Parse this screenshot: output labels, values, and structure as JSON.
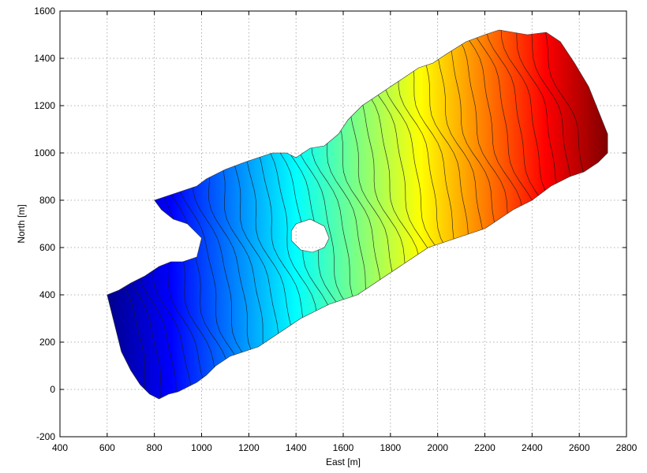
{
  "chart_data": {
    "type": "heatmap",
    "title": "",
    "xlabel": "East [m]",
    "ylabel": "North [m]",
    "xlim": [
      400,
      2800
    ],
    "ylim": [
      -200,
      1600
    ],
    "xticks": [
      400,
      600,
      800,
      1000,
      1200,
      1400,
      1600,
      1800,
      2000,
      2200,
      2400,
      2600,
      2800
    ],
    "yticks": [
      -200,
      0,
      200,
      400,
      600,
      800,
      1000,
      1200,
      1400,
      1600
    ],
    "grid": true,
    "colormap": "jet",
    "colormap_stops": [
      "#00008f",
      "#0000ff",
      "#0080ff",
      "#00ffff",
      "#80ff80",
      "#ffff00",
      "#ff8000",
      "#ff0000",
      "#800000"
    ],
    "region_outline": [
      [
        600,
        400
      ],
      [
        650,
        420
      ],
      [
        700,
        450
      ],
      [
        760,
        480
      ],
      [
        820,
        520
      ],
      [
        870,
        540
      ],
      [
        920,
        540
      ],
      [
        980,
        560
      ],
      [
        1000,
        640
      ],
      [
        940,
        700
      ],
      [
        880,
        720
      ],
      [
        830,
        760
      ],
      [
        800,
        800
      ],
      [
        860,
        820
      ],
      [
        920,
        840
      ],
      [
        980,
        860
      ],
      [
        1020,
        890
      ],
      [
        1100,
        930
      ],
      [
        1180,
        960
      ],
      [
        1240,
        980
      ],
      [
        1300,
        1000
      ],
      [
        1360,
        1000
      ],
      [
        1400,
        980
      ],
      [
        1460,
        1020
      ],
      [
        1520,
        1030
      ],
      [
        1580,
        1080
      ],
      [
        1620,
        1140
      ],
      [
        1680,
        1200
      ],
      [
        1740,
        1240
      ],
      [
        1800,
        1280
      ],
      [
        1860,
        1320
      ],
      [
        1920,
        1360
      ],
      [
        1980,
        1380
      ],
      [
        2040,
        1420
      ],
      [
        2120,
        1470
      ],
      [
        2200,
        1500
      ],
      [
        2260,
        1520
      ],
      [
        2320,
        1510
      ],
      [
        2380,
        1500
      ],
      [
        2460,
        1510
      ],
      [
        2520,
        1470
      ],
      [
        2580,
        1380
      ],
      [
        2640,
        1280
      ],
      [
        2680,
        1180
      ],
      [
        2720,
        1080
      ],
      [
        2720,
        1000
      ],
      [
        2680,
        960
      ],
      [
        2620,
        920
      ],
      [
        2560,
        900
      ],
      [
        2480,
        860
      ],
      [
        2400,
        800
      ],
      [
        2320,
        760
      ],
      [
        2260,
        720
      ],
      [
        2200,
        680
      ],
      [
        2140,
        660
      ],
      [
        2080,
        640
      ],
      [
        2020,
        620
      ],
      [
        1960,
        600
      ],
      [
        1900,
        560
      ],
      [
        1840,
        520
      ],
      [
        1780,
        480
      ],
      [
        1720,
        440
      ],
      [
        1660,
        400
      ],
      [
        1600,
        380
      ],
      [
        1540,
        360
      ],
      [
        1480,
        330
      ],
      [
        1420,
        300
      ],
      [
        1360,
        260
      ],
      [
        1300,
        220
      ],
      [
        1240,
        180
      ],
      [
        1180,
        160
      ],
      [
        1120,
        140
      ],
      [
        1060,
        100
      ],
      [
        1020,
        60
      ],
      [
        980,
        30
      ],
      [
        940,
        10
      ],
      [
        900,
        -10
      ],
      [
        860,
        -20
      ],
      [
        820,
        -40
      ],
      [
        780,
        -20
      ],
      [
        740,
        20
      ],
      [
        700,
        80
      ],
      [
        660,
        160
      ],
      [
        640,
        240
      ],
      [
        620,
        320
      ]
    ],
    "holes": [
      [
        [
          1400,
          700
        ],
        [
          1460,
          720
        ],
        [
          1520,
          690
        ],
        [
          1540,
          640
        ],
        [
          1520,
          600
        ],
        [
          1470,
          580
        ],
        [
          1420,
          590
        ],
        [
          1380,
          630
        ],
        [
          1380,
          670
        ]
      ]
    ],
    "contour_labels": []
  }
}
